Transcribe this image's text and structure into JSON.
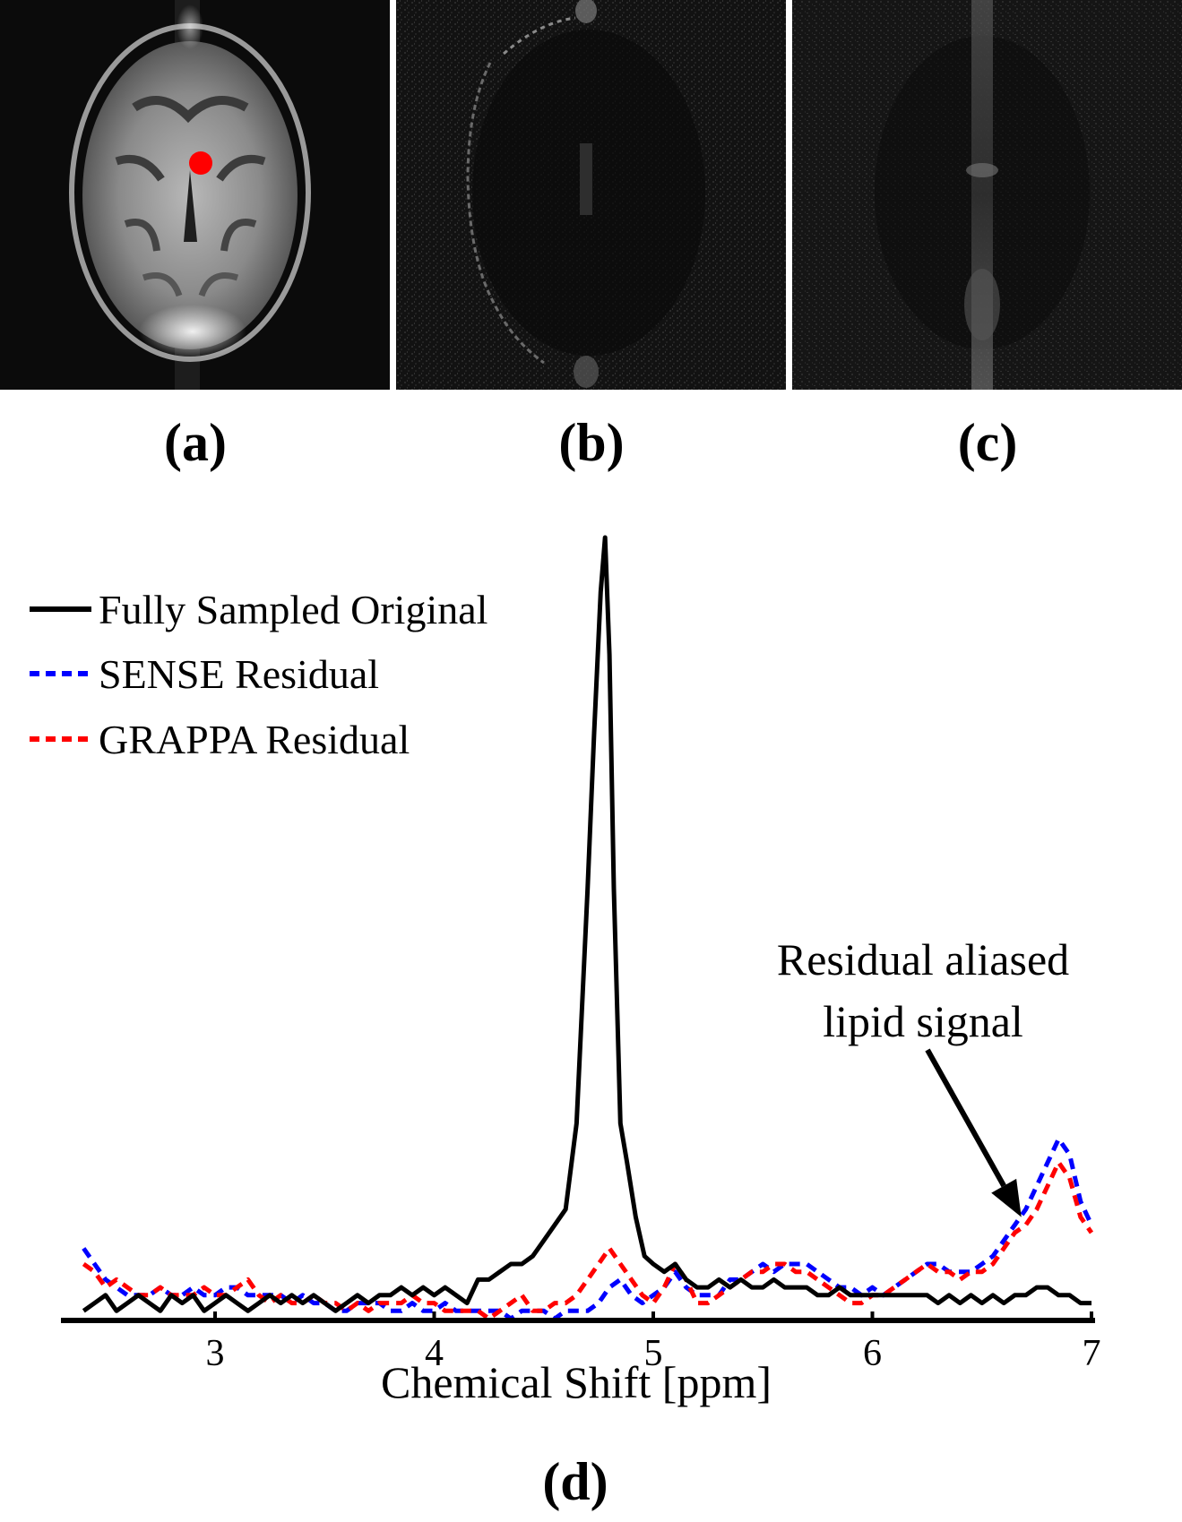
{
  "panels": [
    {
      "id": "a",
      "label": "(a)"
    },
    {
      "id": "b",
      "label": "(b)"
    },
    {
      "id": "c",
      "label": "(c)"
    }
  ],
  "marker_color": "#ff0000",
  "chart_data": {
    "type": "line",
    "panel_label": "(d)",
    "title": "",
    "xlabel": "Chemical Shift [ppm]",
    "ylabel": "",
    "xlim": [
      2.35,
      7.0
    ],
    "ylim": [
      0,
      1.0
    ],
    "xticks": [
      3,
      4,
      5,
      6,
      7
    ],
    "grid": false,
    "legend_position": "top-left",
    "annotation": {
      "lines": [
        "Residual aliased",
        "lipid signal"
      ],
      "arrow_target": {
        "x": 6.68,
        "y": 0.13
      }
    },
    "series": [
      {
        "name": "Fully Sampled Original",
        "color": "#000000",
        "style": "solid",
        "x": [
          2.4,
          2.45,
          2.5,
          2.55,
          2.6,
          2.65,
          2.7,
          2.75,
          2.8,
          2.85,
          2.9,
          2.95,
          3.0,
          3.05,
          3.1,
          3.15,
          3.2,
          3.25,
          3.3,
          3.35,
          3.4,
          3.45,
          3.5,
          3.55,
          3.6,
          3.65,
          3.7,
          3.75,
          3.8,
          3.85,
          3.9,
          3.95,
          4.0,
          4.05,
          4.1,
          4.15,
          4.2,
          4.25,
          4.3,
          4.35,
          4.4,
          4.45,
          4.5,
          4.55,
          4.6,
          4.65,
          4.7,
          4.73,
          4.76,
          4.78,
          4.8,
          4.82,
          4.85,
          4.88,
          4.92,
          4.96,
          5.0,
          5.05,
          5.1,
          5.15,
          5.2,
          5.25,
          5.3,
          5.35,
          5.4,
          5.45,
          5.5,
          5.55,
          5.6,
          5.65,
          5.7,
          5.75,
          5.8,
          5.85,
          5.9,
          5.95,
          6.0,
          6.05,
          6.1,
          6.15,
          6.2,
          6.25,
          6.3,
          6.35,
          6.4,
          6.45,
          6.5,
          6.55,
          6.6,
          6.65,
          6.7,
          6.75,
          6.8,
          6.85,
          6.9,
          6.95,
          7.0
        ],
        "values": [
          0.01,
          0.02,
          0.03,
          0.01,
          0.02,
          0.03,
          0.02,
          0.01,
          0.03,
          0.02,
          0.03,
          0.01,
          0.02,
          0.03,
          0.02,
          0.01,
          0.02,
          0.03,
          0.02,
          0.03,
          0.02,
          0.03,
          0.02,
          0.01,
          0.02,
          0.03,
          0.02,
          0.03,
          0.03,
          0.04,
          0.03,
          0.04,
          0.03,
          0.04,
          0.03,
          0.02,
          0.05,
          0.05,
          0.06,
          0.07,
          0.07,
          0.08,
          0.1,
          0.12,
          0.14,
          0.25,
          0.55,
          0.75,
          0.93,
          1.0,
          0.85,
          0.55,
          0.25,
          0.2,
          0.13,
          0.08,
          0.07,
          0.06,
          0.07,
          0.05,
          0.04,
          0.04,
          0.05,
          0.04,
          0.05,
          0.04,
          0.04,
          0.05,
          0.04,
          0.04,
          0.04,
          0.03,
          0.03,
          0.04,
          0.03,
          0.03,
          0.03,
          0.03,
          0.03,
          0.03,
          0.03,
          0.03,
          0.02,
          0.03,
          0.02,
          0.03,
          0.02,
          0.03,
          0.02,
          0.03,
          0.03,
          0.04,
          0.04,
          0.03,
          0.03,
          0.02,
          0.02
        ]
      },
      {
        "name": "SENSE Residual",
        "color": "#0000ff",
        "style": "dashed",
        "x": [
          2.4,
          2.45,
          2.5,
          2.55,
          2.6,
          2.65,
          2.7,
          2.75,
          2.8,
          2.85,
          2.9,
          2.95,
          3.0,
          3.05,
          3.1,
          3.15,
          3.2,
          3.25,
          3.3,
          3.35,
          3.4,
          3.45,
          3.5,
          3.55,
          3.6,
          3.65,
          3.7,
          3.75,
          3.8,
          3.85,
          3.9,
          3.95,
          4.0,
          4.05,
          4.1,
          4.15,
          4.2,
          4.25,
          4.3,
          4.35,
          4.4,
          4.45,
          4.5,
          4.55,
          4.6,
          4.65,
          4.7,
          4.75,
          4.8,
          4.85,
          4.9,
          4.95,
          5.0,
          5.05,
          5.1,
          5.15,
          5.2,
          5.25,
          5.3,
          5.35,
          5.4,
          5.45,
          5.5,
          5.55,
          5.6,
          5.65,
          5.7,
          5.75,
          5.8,
          5.85,
          5.9,
          5.95,
          6.0,
          6.05,
          6.1,
          6.15,
          6.2,
          6.25,
          6.3,
          6.35,
          6.4,
          6.45,
          6.5,
          6.55,
          6.6,
          6.65,
          6.7,
          6.75,
          6.8,
          6.85,
          6.9,
          6.95,
          7.0
        ],
        "values": [
          0.09,
          0.07,
          0.05,
          0.04,
          0.03,
          0.03,
          0.03,
          0.04,
          0.03,
          0.03,
          0.04,
          0.03,
          0.03,
          0.04,
          0.04,
          0.03,
          0.03,
          0.03,
          0.03,
          0.02,
          0.03,
          0.02,
          0.02,
          0.01,
          0.01,
          0.02,
          0.02,
          0.02,
          0.01,
          0.01,
          0.02,
          0.01,
          0.01,
          0.02,
          0.01,
          0.01,
          0.01,
          0.01,
          0.01,
          0.0,
          0.01,
          0.01,
          0.01,
          0.0,
          0.01,
          0.01,
          0.01,
          0.02,
          0.04,
          0.05,
          0.03,
          0.02,
          0.03,
          0.04,
          0.06,
          0.04,
          0.03,
          0.03,
          0.03,
          0.05,
          0.05,
          0.06,
          0.07,
          0.06,
          0.07,
          0.07,
          0.07,
          0.06,
          0.05,
          0.04,
          0.04,
          0.03,
          0.04,
          0.03,
          0.04,
          0.05,
          0.06,
          0.07,
          0.07,
          0.06,
          0.06,
          0.06,
          0.07,
          0.08,
          0.1,
          0.12,
          0.14,
          0.17,
          0.2,
          0.23,
          0.21,
          0.15,
          0.12
        ]
      },
      {
        "name": "GRAPPA Residual",
        "color": "#ff0000",
        "style": "dashed",
        "x": [
          2.4,
          2.45,
          2.5,
          2.55,
          2.6,
          2.65,
          2.7,
          2.75,
          2.8,
          2.85,
          2.9,
          2.95,
          3.0,
          3.05,
          3.1,
          3.15,
          3.2,
          3.25,
          3.3,
          3.35,
          3.4,
          3.45,
          3.5,
          3.55,
          3.6,
          3.65,
          3.7,
          3.75,
          3.8,
          3.85,
          3.9,
          3.95,
          4.0,
          4.05,
          4.1,
          4.15,
          4.2,
          4.25,
          4.3,
          4.35,
          4.4,
          4.45,
          4.5,
          4.55,
          4.6,
          4.65,
          4.7,
          4.75,
          4.8,
          4.85,
          4.9,
          4.95,
          5.0,
          5.05,
          5.1,
          5.15,
          5.2,
          5.25,
          5.3,
          5.35,
          5.4,
          5.45,
          5.5,
          5.55,
          5.6,
          5.65,
          5.7,
          5.75,
          5.8,
          5.85,
          5.9,
          5.95,
          6.0,
          6.05,
          6.1,
          6.15,
          6.2,
          6.25,
          6.3,
          6.35,
          6.4,
          6.45,
          6.5,
          6.55,
          6.6,
          6.65,
          6.7,
          6.75,
          6.8,
          6.85,
          6.9,
          6.95,
          7.0
        ],
        "values": [
          0.07,
          0.06,
          0.04,
          0.05,
          0.04,
          0.03,
          0.03,
          0.04,
          0.03,
          0.03,
          0.03,
          0.04,
          0.03,
          0.03,
          0.04,
          0.05,
          0.03,
          0.02,
          0.03,
          0.02,
          0.02,
          0.03,
          0.02,
          0.02,
          0.01,
          0.02,
          0.01,
          0.02,
          0.02,
          0.02,
          0.03,
          0.02,
          0.02,
          0.01,
          0.01,
          0.01,
          0.01,
          0.0,
          0.01,
          0.02,
          0.03,
          0.01,
          0.01,
          0.02,
          0.02,
          0.03,
          0.05,
          0.07,
          0.09,
          0.07,
          0.05,
          0.03,
          0.02,
          0.04,
          0.07,
          0.05,
          0.02,
          0.02,
          0.03,
          0.04,
          0.05,
          0.06,
          0.06,
          0.07,
          0.07,
          0.06,
          0.06,
          0.05,
          0.04,
          0.03,
          0.02,
          0.02,
          0.03,
          0.03,
          0.04,
          0.05,
          0.06,
          0.07,
          0.06,
          0.06,
          0.05,
          0.06,
          0.06,
          0.07,
          0.09,
          0.11,
          0.12,
          0.14,
          0.17,
          0.2,
          0.18,
          0.13,
          0.11
        ]
      }
    ]
  }
}
